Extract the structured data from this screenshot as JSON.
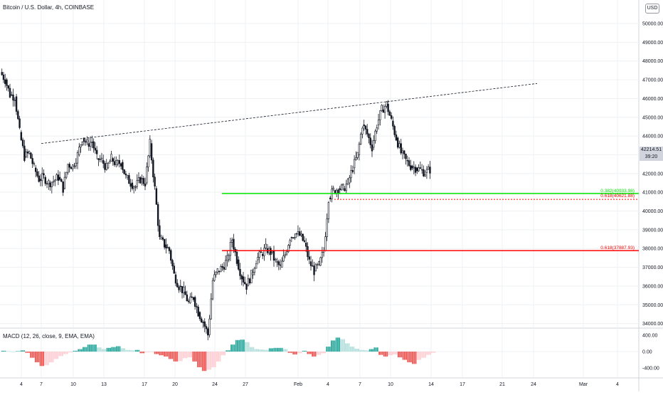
{
  "header": {
    "title": "Bitcoin / U.S. Dollar, 4h, COINBASE",
    "currency": "USD"
  },
  "last_price": {
    "value": "42214.51",
    "countdown": "39:20"
  },
  "indicator": {
    "label": "MACD (12, 26, close, 9, EMA, EMA)"
  },
  "colors": {
    "up": "#26a69a",
    "down": "#ef5350",
    "candle": "#131722",
    "fib_upper": "#00e600",
    "fib_lower": "#ff0000",
    "grid": "#eef0f3"
  },
  "chart_data": [
    {
      "type": "candlestick",
      "price_axis": {
        "range": [
          33000,
          50000
        ],
        "ticks": [
          "34000.00",
          "35000.00",
          "36000.00",
          "37000.00",
          "38000.00",
          "39000.00",
          "40000.00",
          "41000.00",
          "42000.00",
          "43000.00",
          "44000.00",
          "45000.00",
          "46000.00",
          "47000.00",
          "48000.00",
          "49000.00",
          "50000.00"
        ]
      },
      "time_axis": {
        "labels": [
          "4",
          "7",
          "10",
          "13",
          "17",
          "20",
          "24",
          "27",
          "Feb",
          "4",
          "7",
          "10",
          "14",
          "17",
          "21",
          "24",
          "Mar",
          "4"
        ]
      },
      "close_path": [
        47400,
        47000,
        46200,
        46100,
        44200,
        42900,
        43100,
        42300,
        41700,
        41800,
        41500,
        41600,
        41800,
        41200,
        42500,
        42400,
        43000,
        43900,
        43600,
        43700,
        42800,
        42700,
        42300,
        42800,
        42500,
        42600,
        41800,
        41500,
        41300,
        41700,
        41500,
        43600,
        41200,
        38500,
        38200,
        37900,
        36600,
        36000,
        35700,
        35100,
        35400,
        34600,
        34100,
        33400,
        36300,
        36800,
        37000,
        37400,
        38500,
        37400,
        36500,
        36000,
        36600,
        37400,
        37700,
        38000,
        37800,
        37300,
        37000,
        37700,
        38600,
        38800,
        38700,
        38300,
        37300,
        36800,
        37100,
        37900,
        40700,
        41100,
        41200,
        41200,
        41500,
        42300,
        43000,
        44600,
        44100,
        43400,
        44600,
        45400,
        45700,
        44800,
        43900,
        43100,
        42700,
        42400,
        42300,
        42200,
        42050,
        42214
      ],
      "fib_levels": [
        {
          "label": "0.382(40933.98)",
          "value": 40933.98
        },
        {
          "label": "0.618(40621.88)",
          "value": 40621.88
        },
        {
          "label": "0.618(37887.93)",
          "value": 37887.93
        }
      ],
      "trendline": {
        "from": [
          7,
          43600
        ],
        "to": [
          24,
          46800
        ]
      }
    },
    {
      "type": "histogram",
      "name": "MACD (12, 26, close, 9, EMA, EMA)",
      "y_axis": {
        "ticks": [
          "400.00",
          "0.00",
          "-400.00"
        ],
        "range": [
          -500,
          450
        ]
      },
      "values": [
        20,
        10,
        0,
        10,
        30,
        -30,
        -150,
        -260,
        -350,
        -330,
        -260,
        -180,
        -110,
        -60,
        -20,
        20,
        60,
        110,
        170,
        170,
        100,
        60,
        90,
        110,
        130,
        80,
        40,
        30,
        40,
        -40,
        -20,
        -10,
        -60,
        -90,
        -120,
        -180,
        -240,
        -230,
        -160,
        -140,
        -240,
        -380,
        -470,
        -440,
        -380,
        -240,
        -90,
        30,
        170,
        280,
        290,
        230,
        110,
        60,
        50,
        40,
        80,
        90,
        90,
        60,
        -30,
        -70,
        -40,
        20,
        -60,
        -120,
        -80,
        -40,
        120,
        270,
        340,
        300,
        200,
        120,
        70,
        40,
        30,
        60,
        100,
        -80,
        -120,
        -90,
        -70,
        -140,
        -200,
        -260,
        -300,
        -200,
        -150,
        -80,
        -30
      ]
    }
  ]
}
